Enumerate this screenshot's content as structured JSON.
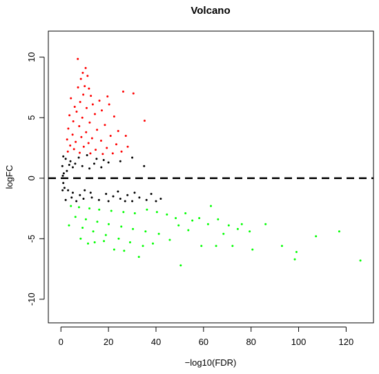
{
  "chart_data": {
    "type": "scatter",
    "title": "Volcano",
    "xlabel": "−log10(FDR)",
    "ylabel": "logFC",
    "xlim": [
      -5.3,
      131.5
    ],
    "ylim": [
      -11.95,
      12.15
    ],
    "xticks": [
      0,
      20,
      40,
      60,
      80,
      100,
      120
    ],
    "yticks": [
      -10,
      -5,
      0,
      5,
      10
    ],
    "grid": false,
    "legend": "none",
    "threshold_line": {
      "y": 0,
      "style": "dashed",
      "color": "#000000"
    },
    "colors": {
      "up": "#ff0000",
      "down": "#00ff00",
      "ns": "#000000"
    },
    "series": [
      {
        "color": "#ff0000",
        "points": [
          [
            7.1,
            9.85
          ],
          [
            10.4,
            9.1
          ],
          [
            9.2,
            8.7
          ],
          [
            11.2,
            8.45
          ],
          [
            8.4,
            8.2
          ],
          [
            10.0,
            7.6
          ],
          [
            7.2,
            7.5
          ],
          [
            11.8,
            7.4
          ],
          [
            26.2,
            7.15
          ],
          [
            30.5,
            7.0
          ],
          [
            9.4,
            6.9
          ],
          [
            12.6,
            6.8
          ],
          [
            19.6,
            6.75
          ],
          [
            4.2,
            6.6
          ],
          [
            16.2,
            6.4
          ],
          [
            8.1,
            6.3
          ],
          [
            13.4,
            6.1
          ],
          [
            20.3,
            6.1
          ],
          [
            5.8,
            5.9
          ],
          [
            10.8,
            5.8
          ],
          [
            17.2,
            5.6
          ],
          [
            6.6,
            5.5
          ],
          [
            14.3,
            5.3
          ],
          [
            3.6,
            5.2
          ],
          [
            22.4,
            5.1
          ],
          [
            9.0,
            5.0
          ],
          [
            35.2,
            4.75
          ],
          [
            5.2,
            4.7
          ],
          [
            12.1,
            4.6
          ],
          [
            18.5,
            4.4
          ],
          [
            7.7,
            4.3
          ],
          [
            3.1,
            4.1
          ],
          [
            15.2,
            4.0
          ],
          [
            24.1,
            3.9
          ],
          [
            10.6,
            3.8
          ],
          [
            4.9,
            3.6
          ],
          [
            20.9,
            3.5
          ],
          [
            8.6,
            3.4
          ],
          [
            27.3,
            3.5
          ],
          [
            13.1,
            3.3
          ],
          [
            2.6,
            3.2
          ],
          [
            16.9,
            3.1
          ],
          [
            6.2,
            3.0
          ],
          [
            11.6,
            2.9
          ],
          [
            23.3,
            2.8
          ],
          [
            3.9,
            2.7
          ],
          [
            9.6,
            2.6
          ],
          [
            19.3,
            2.5
          ],
          [
            28.1,
            2.6
          ],
          [
            5.5,
            2.4
          ],
          [
            14.6,
            2.35
          ],
          [
            25.5,
            2.2
          ],
          [
            2.9,
            2.2
          ],
          [
            7.9,
            2.1
          ],
          [
            12.4,
            2.05
          ],
          [
            17.6,
            2.0
          ],
          [
            21.8,
            2.05
          ]
        ]
      },
      {
        "color": "#00ff00",
        "points": [
          [
            4.2,
            -2.3
          ],
          [
            7.6,
            -2.4
          ],
          [
            12.0,
            -2.5
          ],
          [
            16.1,
            -2.6
          ],
          [
            21.2,
            -2.7
          ],
          [
            26.3,
            -2.8
          ],
          [
            31.1,
            -2.9
          ],
          [
            36.2,
            -2.6
          ],
          [
            40.4,
            -2.8
          ],
          [
            44.6,
            -3.0
          ],
          [
            48.3,
            -3.3
          ],
          [
            52.4,
            -2.9
          ],
          [
            6.1,
            -3.2
          ],
          [
            10.5,
            -3.4
          ],
          [
            15.3,
            -3.6
          ],
          [
            20.1,
            -3.8
          ],
          [
            25.4,
            -4.0
          ],
          [
            30.3,
            -4.2
          ],
          [
            35.6,
            -4.4
          ],
          [
            41.2,
            -4.6
          ],
          [
            3.4,
            -3.9
          ],
          [
            9.1,
            -4.1
          ],
          [
            13.6,
            -4.4
          ],
          [
            18.9,
            -4.7
          ],
          [
            24.3,
            -5.0
          ],
          [
            29.1,
            -5.3
          ],
          [
            34.5,
            -5.6
          ],
          [
            8.3,
            -5.0
          ],
          [
            14.2,
            -5.3
          ],
          [
            22.4,
            -5.9
          ],
          [
            26.6,
            -6.0
          ],
          [
            32.8,
            -6.5
          ],
          [
            50.4,
            -7.2
          ],
          [
            49.5,
            -3.9
          ],
          [
            53.6,
            -4.3
          ],
          [
            55.3,
            -3.5
          ],
          [
            58.2,
            -3.3
          ],
          [
            61.9,
            -3.8
          ],
          [
            63.1,
            -2.3
          ],
          [
            66.1,
            -3.4
          ],
          [
            65.3,
            -5.6
          ],
          [
            70.6,
            -3.9
          ],
          [
            74.4,
            -4.2
          ],
          [
            76.1,
            -3.8
          ],
          [
            79.4,
            -4.4
          ],
          [
            80.6,
            -5.9
          ],
          [
            86.1,
            -3.8
          ],
          [
            93.0,
            -5.6
          ],
          [
            98.4,
            -6.7
          ],
          [
            99.1,
            -6.1
          ],
          [
            107.3,
            -4.8
          ],
          [
            117.1,
            -4.4
          ],
          [
            126.0,
            -6.8
          ],
          [
            59.1,
            -5.6
          ],
          [
            72.2,
            -5.6
          ],
          [
            68.4,
            -4.6
          ],
          [
            45.8,
            -5.1
          ],
          [
            38.7,
            -5.4
          ],
          [
            11.4,
            -5.4
          ],
          [
            18.1,
            -5.2
          ]
        ]
      },
      {
        "color": "#000000",
        "points": [
          [
            1.0,
            1.8
          ],
          [
            2.0,
            1.6
          ],
          [
            4.0,
            1.4
          ],
          [
            6.0,
            1.2
          ],
          [
            9.0,
            1.0
          ],
          [
            12.0,
            0.8
          ],
          [
            15.0,
            1.6
          ],
          [
            18.0,
            1.5
          ],
          [
            20.0,
            1.3
          ],
          [
            2.5,
            0.6
          ],
          [
            1.2,
            0.4
          ],
          [
            0.8,
            0.2
          ],
          [
            3.5,
            1.1
          ],
          [
            7.5,
            1.7
          ],
          [
            11.0,
            1.9
          ],
          [
            14.0,
            1.2
          ],
          [
            17.0,
            0.9
          ],
          [
            25.0,
            1.4
          ],
          [
            30.0,
            1.7
          ],
          [
            35.0,
            1.0
          ],
          [
            1.0,
            -0.4
          ],
          [
            1.5,
            -0.8
          ],
          [
            3.0,
            -1.0
          ],
          [
            5.0,
            -1.2
          ],
          [
            8.0,
            -1.4
          ],
          [
            10.0,
            -1.0
          ],
          [
            13.0,
            -1.6
          ],
          [
            16.0,
            -1.8
          ],
          [
            19.0,
            -1.3
          ],
          [
            22.0,
            -1.5
          ],
          [
            25.0,
            -1.7
          ],
          [
            28.0,
            -1.4
          ],
          [
            30.0,
            -1.9
          ],
          [
            33.0,
            -1.6
          ],
          [
            36.0,
            -1.8
          ],
          [
            38.0,
            -1.3
          ],
          [
            40.0,
            -1.9
          ],
          [
            42.0,
            -1.7
          ],
          [
            2.0,
            -1.8
          ],
          [
            4.5,
            -1.6
          ],
          [
            6.5,
            -1.9
          ],
          [
            9.5,
            -1.7
          ],
          [
            12.5,
            -1.2
          ],
          [
            20.0,
            -1.9
          ],
          [
            24.0,
            -1.1
          ],
          [
            27.0,
            -1.9
          ],
          [
            31.0,
            -1.2
          ],
          [
            0.6,
            1.0
          ],
          [
            0.7,
            -1.0
          ],
          [
            5.0,
            0.9
          ]
        ]
      }
    ]
  }
}
